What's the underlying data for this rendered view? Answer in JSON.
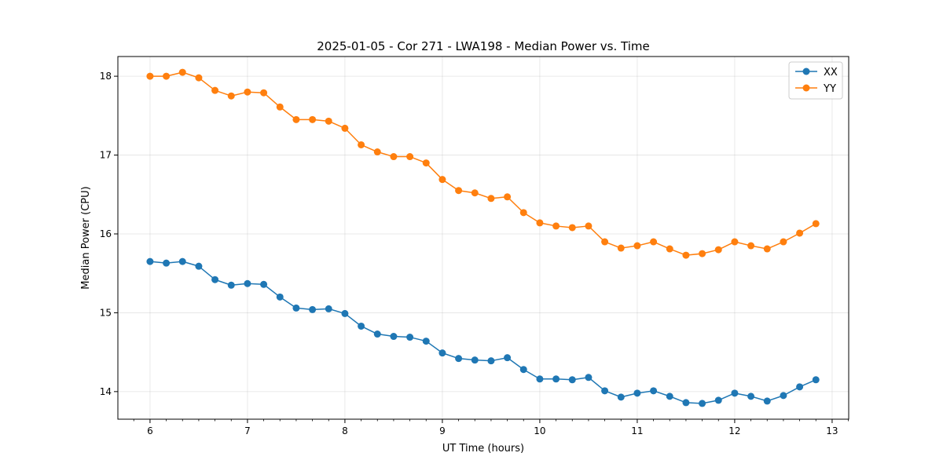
{
  "chart_data": {
    "type": "line",
    "title": "2025-01-05 - Cor 271 - LWA198 - Median Power vs. Time",
    "xlabel": "UT Time (hours)",
    "ylabel": "Median Power (CPU)",
    "xlim": [
      5.67,
      13.17
    ],
    "ylim": [
      13.65,
      18.25
    ],
    "xticks": [
      6,
      7,
      8,
      9,
      10,
      11,
      12,
      13
    ],
    "yticks": [
      14,
      15,
      16,
      17,
      18
    ],
    "grid": true,
    "legend_position": "top-right",
    "x": [
      6.0,
      6.1667,
      6.3333,
      6.5,
      6.6667,
      6.8333,
      7.0,
      7.1667,
      7.3333,
      7.5,
      7.6667,
      7.8333,
      8.0,
      8.1667,
      8.3333,
      8.5,
      8.6667,
      8.8333,
      9.0,
      9.1667,
      9.3333,
      9.5,
      9.6667,
      9.8333,
      10.0,
      10.1667,
      10.3333,
      10.5,
      10.6667,
      10.8333,
      11.0,
      11.1667,
      11.3333,
      11.5,
      11.6667,
      11.8333,
      12.0,
      12.1667,
      12.3333,
      12.5,
      12.6667,
      12.8333
    ],
    "series": [
      {
        "name": "XX",
        "color": "#1f77b4",
        "values": [
          15.65,
          15.63,
          15.65,
          15.59,
          15.42,
          15.35,
          15.37,
          15.36,
          15.2,
          15.06,
          15.04,
          15.05,
          14.99,
          14.83,
          14.73,
          14.7,
          14.69,
          14.64,
          14.49,
          14.42,
          14.4,
          14.39,
          14.43,
          14.28,
          14.16,
          14.16,
          14.15,
          14.18,
          14.01,
          13.93,
          13.98,
          14.01,
          13.94,
          13.86,
          13.85,
          13.89,
          13.98,
          13.94,
          13.88,
          13.95,
          14.06,
          14.15
        ]
      },
      {
        "name": "YY",
        "color": "#ff7f0e",
        "values": [
          18.0,
          18.0,
          18.05,
          17.98,
          17.82,
          17.75,
          17.8,
          17.79,
          17.61,
          17.45,
          17.45,
          17.43,
          17.34,
          17.13,
          17.04,
          16.98,
          16.98,
          16.9,
          16.69,
          16.55,
          16.52,
          16.45,
          16.47,
          16.27,
          16.14,
          16.1,
          16.08,
          16.1,
          15.9,
          15.82,
          15.85,
          15.9,
          15.81,
          15.73,
          15.75,
          15.8,
          15.9,
          15.85,
          15.81,
          15.9,
          16.01,
          16.13
        ]
      }
    ]
  }
}
